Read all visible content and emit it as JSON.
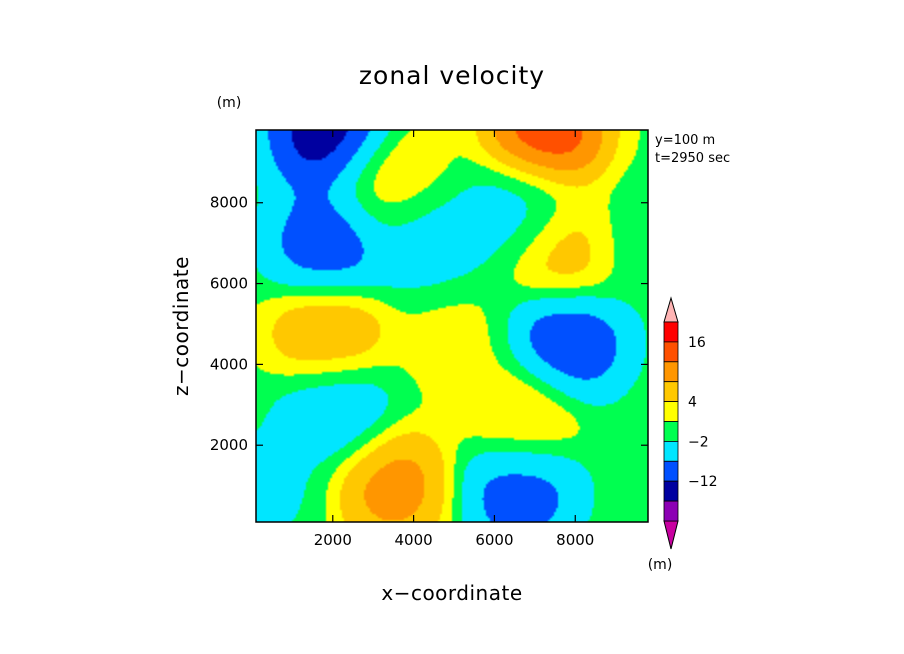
{
  "chart_data": {
    "type": "contour",
    "title": "zonal velocity",
    "xlabel": "x−coordinate",
    "ylabel": "z−coordinate",
    "x_unit": "(m)",
    "y_unit": "(m)",
    "xlim": [
      100,
      9800
    ],
    "ylim": [
      100,
      9800
    ],
    "x_ticks": [
      2000,
      4000,
      6000,
      8000
    ],
    "y_ticks": [
      2000,
      4000,
      6000,
      8000
    ],
    "x_tick_labels": [
      "2000",
      "4000",
      "6000",
      "8000"
    ],
    "y_tick_labels": [
      "2000",
      "4000",
      "6000",
      "8000"
    ],
    "annotations": [
      "y=100 m",
      "t=2950 sec"
    ],
    "colorbar": {
      "unit": "(m)",
      "labels": [
        {
          "value": 16,
          "text": "16"
        },
        {
          "value": 4,
          "text": "4"
        },
        {
          "value": -2,
          "text": "−2"
        },
        {
          "value": -12,
          "text": "−12"
        }
      ],
      "levels": [
        -22,
        -17,
        -12,
        -7,
        -2,
        1,
        4,
        8,
        12,
        16,
        22
      ],
      "colors": [
        "#c800a0",
        "#8c00b4",
        "#0000a0",
        "#0050ff",
        "#00e6ff",
        "#00ff50",
        "#ffff00",
        "#ffc800",
        "#ff9600",
        "#ff5000",
        "#ff0000",
        "#ffb4b4"
      ],
      "extend": "both"
    },
    "field_features": [
      {
        "x": 1900,
        "z": 9700,
        "value": -20
      },
      {
        "x": 7300,
        "z": 9700,
        "value": 20
      },
      {
        "x": 3400,
        "z": 8550,
        "value": 6
      },
      {
        "x": 1900,
        "z": 6950,
        "value": -14
      },
      {
        "x": 6700,
        "z": 7750,
        "value": -7
      },
      {
        "x": 4300,
        "z": 7100,
        "value": -6
      },
      {
        "x": 7700,
        "z": 6800,
        "value": 10
      },
      {
        "x": 1900,
        "z": 4750,
        "value": 11
      },
      {
        "x": 7800,
        "z": 4550,
        "value": -15
      },
      {
        "x": 5000,
        "z": 4500,
        "value": 3
      },
      {
        "x": 2100,
        "z": 2900,
        "value": -8
      },
      {
        "x": 6700,
        "z": 2700,
        "value": 7
      },
      {
        "x": 3500,
        "z": 1000,
        "value": 13
      },
      {
        "x": 6600,
        "z": 900,
        "value": -13
      },
      {
        "x": 300,
        "z": 1000,
        "value": -4
      },
      {
        "x": 9600,
        "z": 7000,
        "value": -2
      }
    ]
  }
}
